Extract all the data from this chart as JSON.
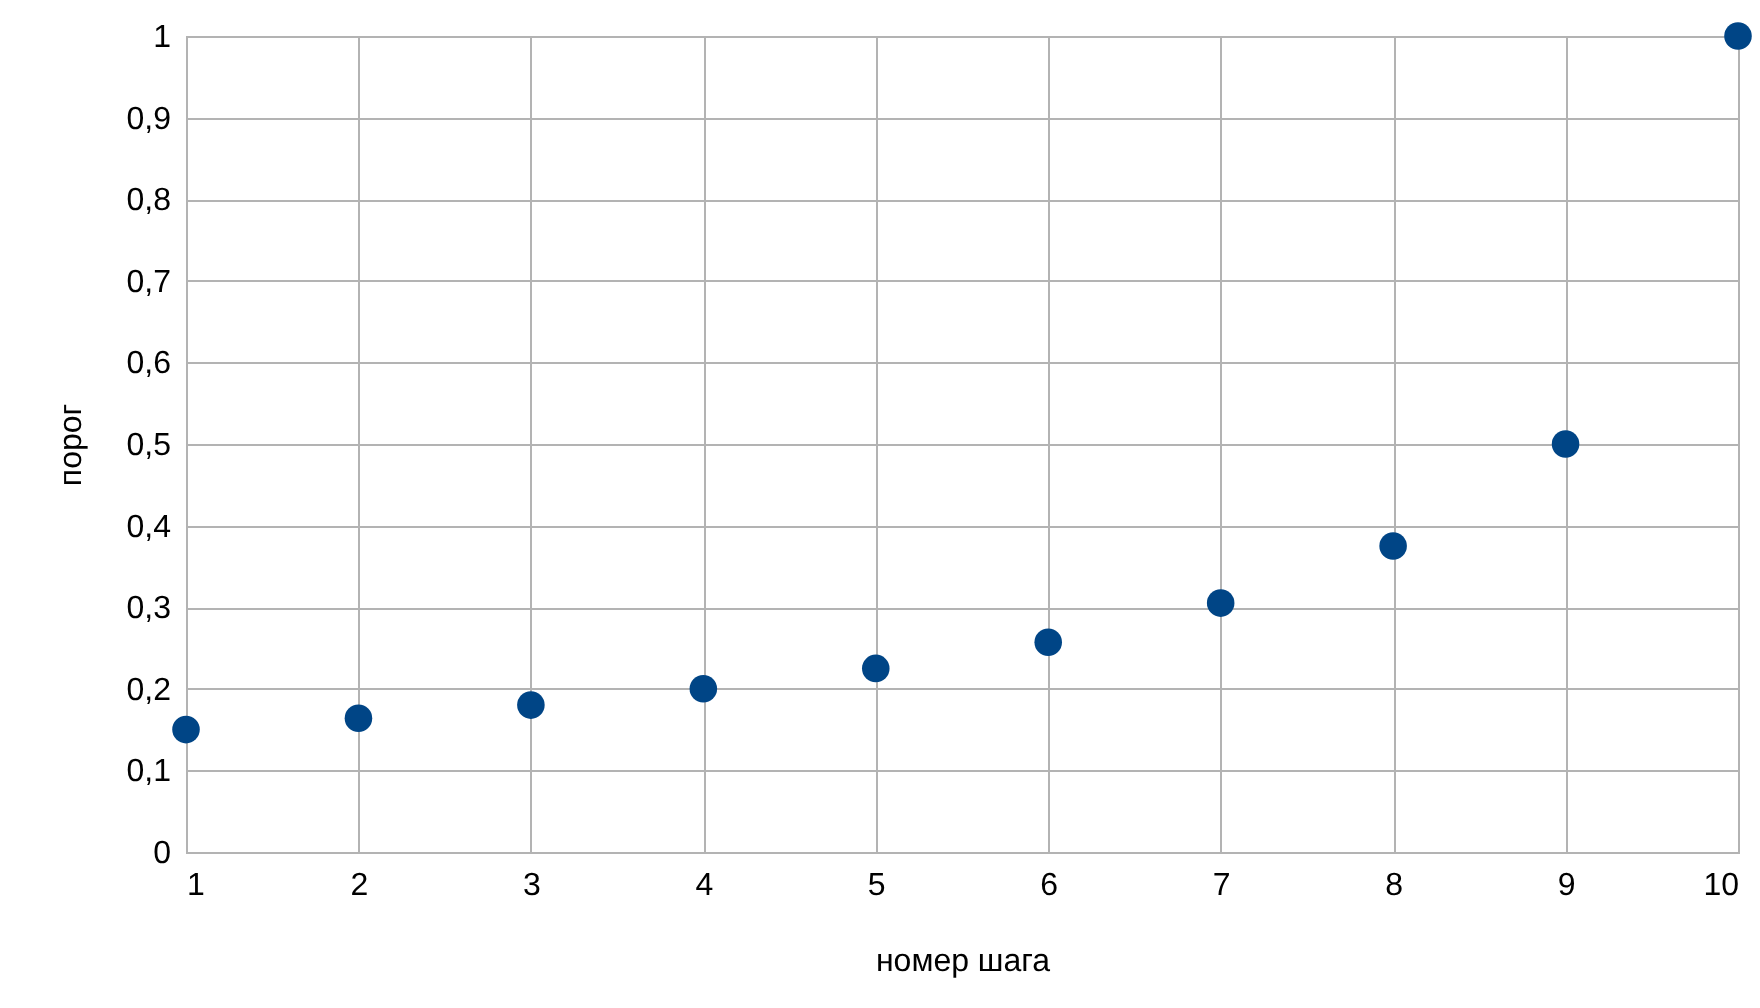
{
  "chart_data": {
    "type": "scatter",
    "xlabel": "номер шага",
    "ylabel": "порог",
    "x": [
      1,
      2,
      3,
      4,
      5,
      6,
      7,
      8,
      9,
      10
    ],
    "series": [
      {
        "color": "#004586",
        "values": [
          0.15,
          0.164,
          0.18,
          0.2,
          0.225,
          0.257,
          0.305,
          0.375,
          0.5,
          1.0
        ]
      }
    ],
    "xlim": [
      1,
      10
    ],
    "xticks": [
      1,
      2,
      3,
      4,
      5,
      6,
      7,
      8,
      9,
      10
    ],
    "ylim": [
      0,
      1
    ],
    "yticks": [
      0,
      {
        "value": 0.1,
        "label": "0,1"
      },
      {
        "value": 0.2,
        "label": "0,2"
      },
      {
        "value": 0.3,
        "label": "0,3"
      },
      {
        "value": 0.4,
        "label": "0,4"
      },
      {
        "value": 0.5,
        "label": "0,5"
      },
      {
        "value": 0.6,
        "label": "0,6"
      },
      {
        "value": 0.7,
        "label": "0,7"
      },
      {
        "value": 0.8,
        "label": "0,8"
      },
      {
        "value": 0.9,
        "label": "0,9"
      },
      1
    ],
    "grid": true,
    "marker": "circle"
  }
}
